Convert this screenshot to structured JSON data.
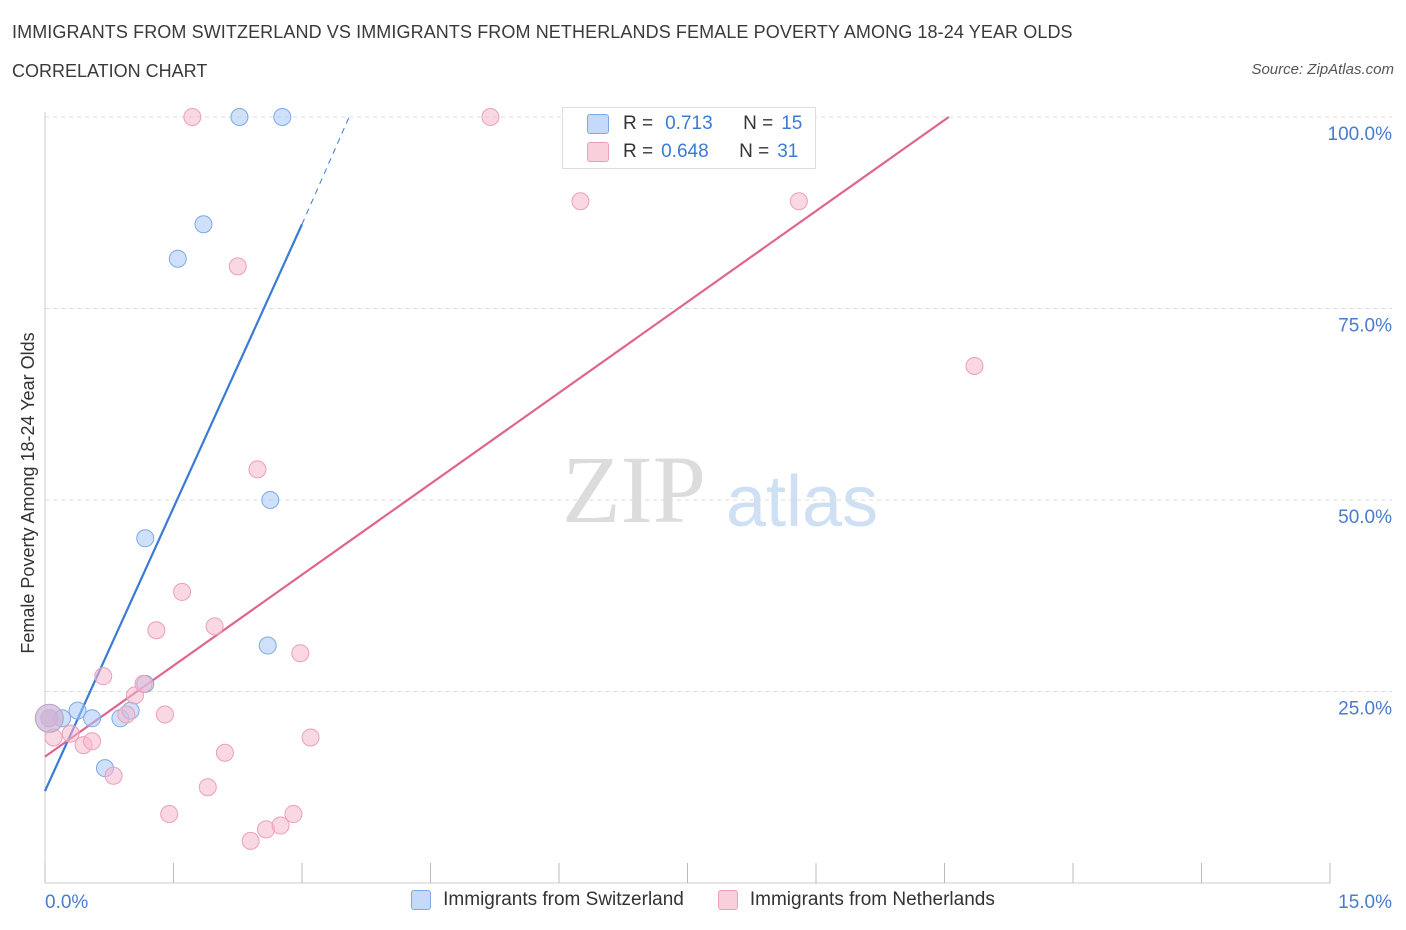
{
  "title": "IMMIGRANTS FROM SWITZERLAND VS IMMIGRANTS FROM NETHERLANDS FEMALE POVERTY AMONG 18-24 YEAR OLDS",
  "subtitle": "CORRELATION CHART",
  "source": "Source: ZipAtlas.com",
  "watermark": {
    "zip": "ZIP",
    "atlas": "atlas"
  },
  "stats": [
    {
      "r_label": "R =",
      "r": "0.713",
      "n_label": "N =",
      "n": "15",
      "color": "#a8c8f5"
    },
    {
      "r_label": "R =",
      "r": "0.648",
      "n_label": "N =",
      "n": "31",
      "color": "#f6b8cc"
    }
  ],
  "legend": [
    {
      "label": "Immigrants from Switzerland",
      "color": "#a8c8f5"
    },
    {
      "label": "Immigrants from Netherlands",
      "color": "#f6b8cc"
    }
  ],
  "colors": {
    "blue": "#3a7bd5",
    "pink": "#e0648f",
    "blue_fill": "#a8c8f5",
    "pink_fill": "#f6b8cc",
    "tick_label": "#4a7cc9"
  },
  "chart_data": {
    "type": "scatter",
    "title": "IMMIGRANTS FROM SWITZERLAND VS IMMIGRANTS FROM NETHERLANDS FEMALE POVERTY AMONG 18-24 YEAR OLDS",
    "xlabel": "",
    "ylabel": "Female Poverty Among 18-24 Year Olds",
    "xlim": [
      0,
      15
    ],
    "ylim": [
      0,
      100
    ],
    "x_tick_labels": [
      "0.0%",
      "15.0%"
    ],
    "y_ticks": [
      25,
      50,
      75,
      100
    ],
    "y_tick_labels": [
      "25.0%",
      "50.0%",
      "75.0%",
      "100.0%"
    ],
    "grid": true,
    "legend_position": "bottom",
    "series": [
      {
        "name": "Immigrants from Switzerland",
        "points": [
          [
            0.05,
            21.5
          ],
          [
            0.2,
            21.5
          ],
          [
            0.38,
            22.5
          ],
          [
            0.55,
            21.5
          ],
          [
            0.7,
            15.0
          ],
          [
            0.88,
            21.5
          ],
          [
            1.0,
            22.5
          ],
          [
            1.17,
            26.0
          ],
          [
            1.17,
            45.0
          ],
          [
            1.55,
            81.5
          ],
          [
            1.85,
            86.0
          ],
          [
            2.27,
            100.0
          ],
          [
            2.6,
            31.0
          ],
          [
            2.63,
            50.0
          ],
          [
            2.77,
            100.0
          ]
        ],
        "trend": {
          "x0": 0.0,
          "y0": 12.0,
          "x1": 3.0,
          "y1": 86.0,
          "dash_x1": 3.55,
          "dash_y1": 100.0
        }
      },
      {
        "name": "Immigrants from Netherlands",
        "points": [
          [
            0.05,
            21.5
          ],
          [
            0.1,
            19.0
          ],
          [
            0.3,
            19.5
          ],
          [
            0.45,
            18.0
          ],
          [
            0.55,
            18.5
          ],
          [
            0.68,
            27.0
          ],
          [
            0.8,
            14.0
          ],
          [
            0.95,
            22.0
          ],
          [
            1.05,
            24.5
          ],
          [
            1.15,
            26.0
          ],
          [
            1.3,
            33.0
          ],
          [
            1.4,
            22.0
          ],
          [
            1.45,
            9.0
          ],
          [
            1.6,
            38.0
          ],
          [
            1.72,
            100.0
          ],
          [
            1.9,
            12.5
          ],
          [
            1.98,
            33.5
          ],
          [
            2.1,
            17.0
          ],
          [
            2.25,
            80.5
          ],
          [
            2.4,
            5.5
          ],
          [
            2.48,
            54.0
          ],
          [
            2.58,
            7.0
          ],
          [
            2.75,
            7.5
          ],
          [
            2.9,
            9.0
          ],
          [
            2.98,
            30.0
          ],
          [
            3.1,
            19.0
          ],
          [
            5.2,
            100.0
          ],
          [
            6.25,
            89.0
          ],
          [
            7.45,
            100.0
          ],
          [
            8.8,
            89.0
          ],
          [
            10.85,
            67.5
          ]
        ],
        "trend": {
          "x0": 0.0,
          "y0": 16.5,
          "x1": 10.55,
          "y1": 100.0
        }
      }
    ]
  }
}
